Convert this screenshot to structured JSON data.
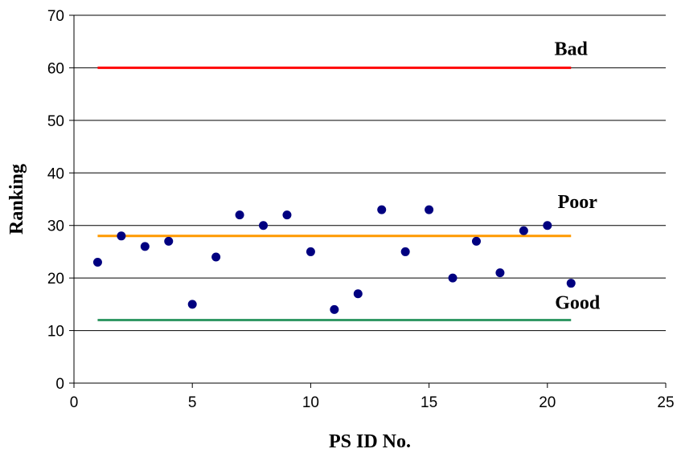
{
  "chart_data": {
    "type": "scatter",
    "title": "",
    "xlabel": "PS ID No.",
    "ylabel": "Ranking",
    "xlim": [
      0,
      25
    ],
    "ylim": [
      0,
      70
    ],
    "x_ticks": [
      0,
      5,
      10,
      15,
      20,
      25
    ],
    "y_ticks": [
      0,
      10,
      20,
      30,
      40,
      50,
      60,
      70
    ],
    "grid": "horizontal",
    "legend": "none",
    "series": [
      {
        "x": [
          1,
          2,
          3,
          4,
          5,
          6,
          7,
          8,
          9,
          10,
          11,
          12,
          13,
          14,
          15,
          16,
          17,
          18,
          19,
          20,
          21
        ],
        "y": [
          23,
          28,
          26,
          27,
          15,
          24,
          32,
          30,
          32,
          25,
          14,
          17,
          33,
          25,
          33,
          20,
          27,
          21,
          29,
          30,
          19
        ],
        "color": "#000080",
        "marker": "circle"
      }
    ],
    "reference_lines": [
      {
        "label": "Bad",
        "y": 60,
        "x_start": 1,
        "x_end": 21,
        "color": "#ff0000"
      },
      {
        "label": "Poor",
        "y": 28,
        "x_start": 1,
        "x_end": 21,
        "color": "#ff9900"
      },
      {
        "label": "Good",
        "y": 12,
        "x_start": 1,
        "x_end": 21,
        "color": "#339966"
      }
    ]
  }
}
